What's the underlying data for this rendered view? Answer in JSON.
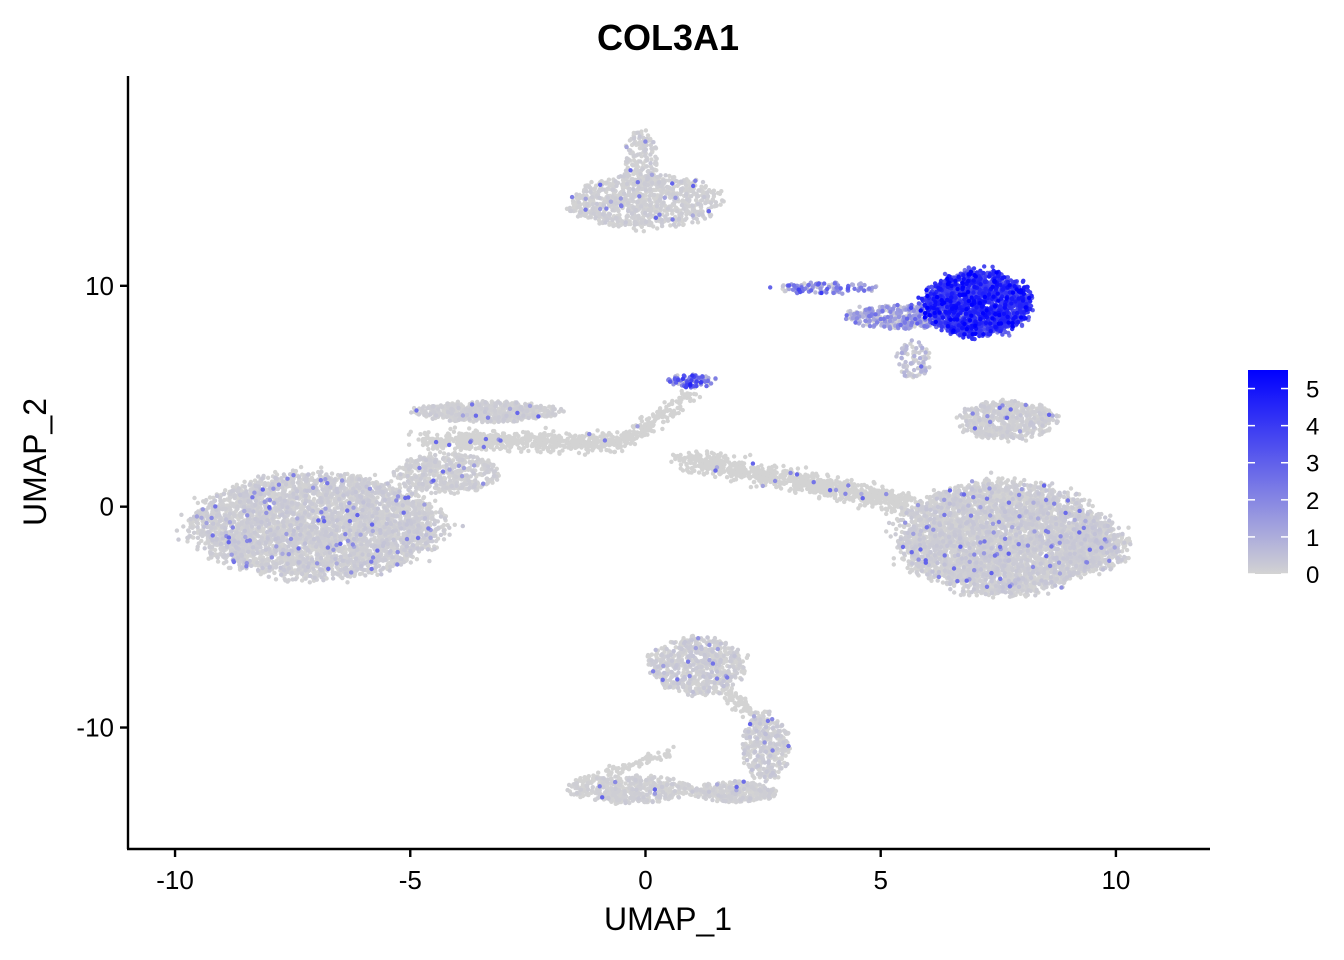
{
  "chart_data": {
    "type": "scatter",
    "title": "COL3A1",
    "xlabel": "UMAP_1",
    "ylabel": "UMAP_2",
    "xlim": [
      -11,
      12
    ],
    "ylim": [
      -15.5,
      19.5
    ],
    "x_ticks": [
      -10,
      -5,
      0,
      5,
      10
    ],
    "y_ticks": [
      -10,
      0,
      10
    ],
    "x_tick_labels": [
      "-10",
      "-5",
      "0",
      "5",
      "10"
    ],
    "y_tick_labels": [
      "-10",
      "0",
      "10"
    ],
    "grid": false,
    "legend": {
      "placement": "right",
      "type": "colorbar",
      "min": 0,
      "max": 5.5,
      "ticks": [
        0,
        1,
        2,
        3,
        4,
        5
      ],
      "tick_labels": [
        "0",
        "1",
        "2",
        "3",
        "4",
        "5"
      ],
      "low_color": "#d3d3d3",
      "high_color": "#0000ff"
    },
    "clusters": [
      {
        "id": "top-island",
        "cx": 0.0,
        "cy": 13.8,
        "rx": 1.6,
        "ry": 1.2,
        "n": 900,
        "expr_mean": 0.05,
        "expr_sd": 0.1
      },
      {
        "id": "top-island-stem",
        "cx": -0.1,
        "cy": 15.7,
        "rx": 0.35,
        "ry": 1.4,
        "n": 180,
        "expr_mean": 0.05,
        "expr_sd": 0.1
      },
      {
        "id": "fibroblast-cluster",
        "cx": 7.05,
        "cy": 9.2,
        "rx": 1.15,
        "ry": 1.45,
        "n": 2000,
        "expr_mean": 3.6,
        "expr_sd": 1.0
      },
      {
        "id": "fibroblast-tail",
        "cx": 5.4,
        "cy": 8.6,
        "rx": 1.1,
        "ry": 0.55,
        "n": 350,
        "expr_mean": 0.8,
        "expr_sd": 0.9
      },
      {
        "id": "fibroblast-streak",
        "cx": 3.8,
        "cy": 9.9,
        "rx": 1.1,
        "ry": 0.25,
        "n": 110,
        "expr_mean": 1.5,
        "expr_sd": 1.2
      },
      {
        "id": "fibroblast-spur",
        "cx": 5.7,
        "cy": 6.6,
        "rx": 0.35,
        "ry": 0.9,
        "n": 90,
        "expr_mean": 0.3,
        "expr_sd": 0.4
      },
      {
        "id": "small-center",
        "cx": 1.0,
        "cy": 5.7,
        "rx": 0.55,
        "ry": 0.3,
        "n": 80,
        "expr_mean": 2.2,
        "expr_sd": 1.2
      },
      {
        "id": "mid-right-island",
        "cx": 7.7,
        "cy": 3.9,
        "rx": 1.05,
        "ry": 0.85,
        "n": 550,
        "expr_mean": 0.05,
        "expr_sd": 0.1
      },
      {
        "id": "left-blob",
        "cx": -7.0,
        "cy": -0.9,
        "rx": 2.6,
        "ry": 2.3,
        "n": 4200,
        "expr_mean": 0.05,
        "expr_sd": 0.15
      },
      {
        "id": "left-blob-top",
        "cx": -4.2,
        "cy": 1.5,
        "rx": 1.1,
        "ry": 0.9,
        "n": 500,
        "expr_mean": 0.05,
        "expr_sd": 0.1
      },
      {
        "id": "upper-left-ridge",
        "cx": -3.4,
        "cy": 4.3,
        "rx": 1.5,
        "ry": 0.45,
        "n": 650,
        "expr_mean": 0.05,
        "expr_sd": 0.1
      },
      {
        "id": "right-blob",
        "cx": 7.6,
        "cy": -1.4,
        "rx": 2.2,
        "ry": 2.5,
        "n": 4500,
        "expr_mean": 0.05,
        "expr_sd": 0.15
      },
      {
        "id": "right-blob-east",
        "cx": 9.6,
        "cy": -1.8,
        "rx": 0.7,
        "ry": 1.1,
        "n": 400,
        "expr_mean": 0.05,
        "expr_sd": 0.15
      },
      {
        "id": "bottom-upper",
        "cx": 1.1,
        "cy": -7.2,
        "rx": 1.0,
        "ry": 1.3,
        "n": 700,
        "expr_mean": 0.05,
        "expr_sd": 0.15
      },
      {
        "id": "bottom-hook",
        "cx": 2.55,
        "cy": -10.8,
        "rx": 0.5,
        "ry": 1.5,
        "n": 360,
        "expr_mean": 0.05,
        "expr_sd": 0.15
      },
      {
        "id": "bottom-lower",
        "cx": -0.3,
        "cy": -12.8,
        "rx": 1.3,
        "ry": 0.6,
        "n": 450,
        "expr_mean": 0.05,
        "expr_sd": 0.1
      },
      {
        "id": "bottom-lower-right",
        "cx": 1.9,
        "cy": -12.9,
        "rx": 0.9,
        "ry": 0.45,
        "n": 300,
        "expr_mean": 0.05,
        "expr_sd": 0.1
      }
    ],
    "bridges": [
      {
        "id": "bridge-left",
        "from": [
          -4.6,
          3.0
        ],
        "to": [
          -0.5,
          2.9
        ],
        "width": 0.4,
        "n": 700
      },
      {
        "id": "bridge-center-up",
        "from": [
          -0.5,
          2.9
        ],
        "to": [
          1.0,
          5.2
        ],
        "width": 0.3,
        "n": 160
      },
      {
        "id": "bridge-right",
        "from": [
          0.8,
          2.2
        ],
        "to": [
          5.6,
          0.1
        ],
        "width": 0.45,
        "n": 900
      },
      {
        "id": "bridge-bottom",
        "from": [
          1.6,
          -8.2
        ],
        "to": [
          2.4,
          -9.6
        ],
        "width": 0.25,
        "n": 90
      },
      {
        "id": "bridge-bottom-left",
        "from": [
          -1.4,
          -12.5
        ],
        "to": [
          0.6,
          -11.0
        ],
        "width": 0.2,
        "n": 90
      }
    ]
  }
}
